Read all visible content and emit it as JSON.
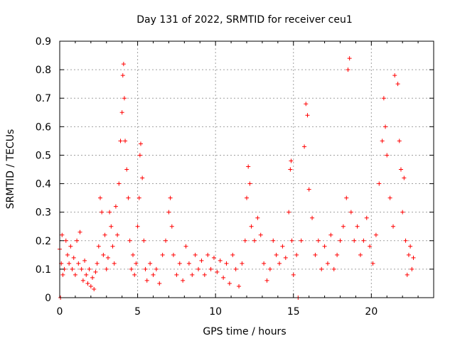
{
  "chart_data": {
    "type": "scatter",
    "title": "Day 131 of 2022, SRMTID for receiver ceu1",
    "xlabel": "GPS time / hours",
    "ylabel": "SRMTID / TECUs",
    "xlim": [
      0,
      24
    ],
    "ylim": [
      0,
      0.9
    ],
    "x_ticks": [
      0,
      5,
      10,
      15,
      20
    ],
    "x_tick_labels": [
      "0",
      "5",
      "10",
      "15",
      "20"
    ],
    "y_ticks": [
      0,
      0.1,
      0.2,
      0.3,
      0.4,
      0.5,
      0.6,
      0.7,
      0.8,
      0.9
    ],
    "y_tick_labels": [
      "0",
      "0.1",
      "0.2",
      "0.3",
      "0.4",
      "0.5",
      "0.6",
      "0.7",
      "0.8",
      "0.9"
    ],
    "grid": true,
    "marker": "+",
    "marker_color": "#ff0000",
    "grid_color": "#a0a0a0",
    "series": [
      {
        "name": "SRMTID",
        "points": [
          [
            0.0,
            0.17
          ],
          [
            0.05,
            0.0
          ],
          [
            0.1,
            0.12
          ],
          [
            0.15,
            0.22
          ],
          [
            0.2,
            0.08
          ],
          [
            0.3,
            0.1
          ],
          [
            0.4,
            0.2
          ],
          [
            0.5,
            0.15
          ],
          [
            0.6,
            0.12
          ],
          [
            0.7,
            0.18
          ],
          [
            0.8,
            0.1
          ],
          [
            0.9,
            0.14
          ],
          [
            1.0,
            0.08
          ],
          [
            1.1,
            0.2
          ],
          [
            1.2,
            0.12
          ],
          [
            1.3,
            0.23
          ],
          [
            1.4,
            0.1
          ],
          [
            1.5,
            0.06
          ],
          [
            1.6,
            0.13
          ],
          [
            1.7,
            0.08
          ],
          [
            1.8,
            0.05
          ],
          [
            1.9,
            0.1
          ],
          [
            2.0,
            0.04
          ],
          [
            2.1,
            0.07
          ],
          [
            2.2,
            0.03
          ],
          [
            2.3,
            0.09
          ],
          [
            2.4,
            0.12
          ],
          [
            2.5,
            0.18
          ],
          [
            2.6,
            0.35
          ],
          [
            2.7,
            0.3
          ],
          [
            2.8,
            0.15
          ],
          [
            2.9,
            0.22
          ],
          [
            3.0,
            0.1
          ],
          [
            3.1,
            0.14
          ],
          [
            3.2,
            0.3
          ],
          [
            3.3,
            0.25
          ],
          [
            3.4,
            0.18
          ],
          [
            3.5,
            0.12
          ],
          [
            3.6,
            0.32
          ],
          [
            3.7,
            0.22
          ],
          [
            3.8,
            0.4
          ],
          [
            3.9,
            0.55
          ],
          [
            4.0,
            0.65
          ],
          [
            4.05,
            0.78
          ],
          [
            4.1,
            0.82
          ],
          [
            4.15,
            0.7
          ],
          [
            4.2,
            0.55
          ],
          [
            4.3,
            0.45
          ],
          [
            4.4,
            0.35
          ],
          [
            4.5,
            0.2
          ],
          [
            4.6,
            0.1
          ],
          [
            4.7,
            0.15
          ],
          [
            4.8,
            0.08
          ],
          [
            4.9,
            0.12
          ],
          [
            5.0,
            0.25
          ],
          [
            5.1,
            0.35
          ],
          [
            5.15,
            0.5
          ],
          [
            5.2,
            0.54
          ],
          [
            5.3,
            0.42
          ],
          [
            5.4,
            0.2
          ],
          [
            5.5,
            0.1
          ],
          [
            5.6,
            0.06
          ],
          [
            5.8,
            0.12
          ],
          [
            6.0,
            0.08
          ],
          [
            6.2,
            0.1
          ],
          [
            6.4,
            0.05
          ],
          [
            6.6,
            0.15
          ],
          [
            6.8,
            0.2
          ],
          [
            7.0,
            0.3
          ],
          [
            7.1,
            0.35
          ],
          [
            7.2,
            0.25
          ],
          [
            7.3,
            0.15
          ],
          [
            7.5,
            0.08
          ],
          [
            7.7,
            0.12
          ],
          [
            7.9,
            0.06
          ],
          [
            8.1,
            0.18
          ],
          [
            8.3,
            0.12
          ],
          [
            8.5,
            0.08
          ],
          [
            8.7,
            0.15
          ],
          [
            8.9,
            0.1
          ],
          [
            9.1,
            0.13
          ],
          [
            9.3,
            0.08
          ],
          [
            9.5,
            0.15
          ],
          [
            9.7,
            0.1
          ],
          [
            9.9,
            0.14
          ],
          [
            10.1,
            0.09
          ],
          [
            10.3,
            0.13
          ],
          [
            10.5,
            0.07
          ],
          [
            10.7,
            0.12
          ],
          [
            10.9,
            0.05
          ],
          [
            11.1,
            0.15
          ],
          [
            11.3,
            0.1
          ],
          [
            11.5,
            0.04
          ],
          [
            11.7,
            0.12
          ],
          [
            11.9,
            0.2
          ],
          [
            12.0,
            0.35
          ],
          [
            12.1,
            0.46
          ],
          [
            12.2,
            0.4
          ],
          [
            12.3,
            0.25
          ],
          [
            12.5,
            0.2
          ],
          [
            12.7,
            0.28
          ],
          [
            12.9,
            0.22
          ],
          [
            13.1,
            0.12
          ],
          [
            13.3,
            0.06
          ],
          [
            13.5,
            0.1
          ],
          [
            13.7,
            0.2
          ],
          [
            13.9,
            0.15
          ],
          [
            14.1,
            0.12
          ],
          [
            14.3,
            0.18
          ],
          [
            14.5,
            0.14
          ],
          [
            14.7,
            0.3
          ],
          [
            14.8,
            0.45
          ],
          [
            14.85,
            0.48
          ],
          [
            14.9,
            0.2
          ],
          [
            15.0,
            0.08
          ],
          [
            15.2,
            0.15
          ],
          [
            15.3,
            0.0
          ],
          [
            15.5,
            0.2
          ],
          [
            15.7,
            0.53
          ],
          [
            15.8,
            0.68
          ],
          [
            15.9,
            0.64
          ],
          [
            16.0,
            0.38
          ],
          [
            16.2,
            0.28
          ],
          [
            16.4,
            0.15
          ],
          [
            16.6,
            0.2
          ],
          [
            16.8,
            0.1
          ],
          [
            17.0,
            0.18
          ],
          [
            17.2,
            0.12
          ],
          [
            17.4,
            0.22
          ],
          [
            17.6,
            0.1
          ],
          [
            17.8,
            0.15
          ],
          [
            18.0,
            0.2
          ],
          [
            18.2,
            0.25
          ],
          [
            18.4,
            0.35
          ],
          [
            18.5,
            0.8
          ],
          [
            18.6,
            0.84
          ],
          [
            18.7,
            0.3
          ],
          [
            18.9,
            0.2
          ],
          [
            19.1,
            0.25
          ],
          [
            19.3,
            0.15
          ],
          [
            19.5,
            0.2
          ],
          [
            19.7,
            0.28
          ],
          [
            19.9,
            0.18
          ],
          [
            20.1,
            0.12
          ],
          [
            20.3,
            0.22
          ],
          [
            20.5,
            0.4
          ],
          [
            20.7,
            0.55
          ],
          [
            20.8,
            0.7
          ],
          [
            20.9,
            0.6
          ],
          [
            21.0,
            0.5
          ],
          [
            21.2,
            0.35
          ],
          [
            21.4,
            0.25
          ],
          [
            21.5,
            0.78
          ],
          [
            21.7,
            0.75
          ],
          [
            21.8,
            0.55
          ],
          [
            21.9,
            0.45
          ],
          [
            22.0,
            0.3
          ],
          [
            22.1,
            0.42
          ],
          [
            22.2,
            0.2
          ],
          [
            22.3,
            0.08
          ],
          [
            22.4,
            0.15
          ],
          [
            22.5,
            0.18
          ],
          [
            22.6,
            0.1
          ],
          [
            22.7,
            0.14
          ]
        ]
      }
    ]
  }
}
